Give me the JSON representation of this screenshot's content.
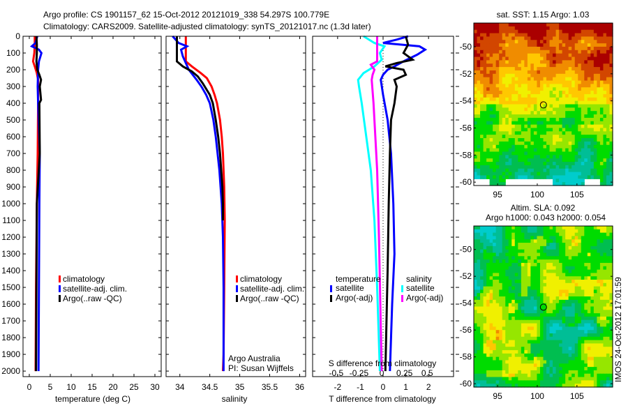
{
  "title_line1": "Argo profile: CS 1901157_62 15-Oct-2012 20121019_338 54.297S 100.779E",
  "title_line2": "Climatology: CARS2009. Satellite-adjusted climatology: synTS_20121017.nc (1.3d later)",
  "colors": {
    "climatology": "#ff0000",
    "satellite": "#0000ff",
    "argo": "#000000",
    "s_satellite": "#00ffff",
    "s_argo": "#ff00ff"
  },
  "footer_stamp": "IMOS 24-Oct-2012 17:01:59",
  "credit_line1": "Argo Australia",
  "credit_line2": "PI: Susan Wijffels",
  "chart_data": [
    {
      "type": "line",
      "name": "temperature",
      "xlabel": "temperature (deg C)",
      "ylabel": "",
      "xlim": [
        -1.5,
        31.5
      ],
      "ylim": [
        2033,
        0
      ],
      "xticks": [
        0,
        5,
        10,
        15,
        20,
        25,
        30
      ],
      "yticks": [
        0,
        100,
        200,
        300,
        400,
        500,
        600,
        700,
        800,
        900,
        1000,
        1100,
        1200,
        1300,
        1400,
        1500,
        1600,
        1700,
        1800,
        1900,
        2000
      ],
      "legend": [
        "climatology",
        "satellite-adj. clim.",
        "Argo(..raw -QC)"
      ],
      "series": [
        {
          "name": "climatology",
          "color": "#ff0000",
          "depth": [
            0,
            50,
            100,
            150,
            180,
            220,
            260,
            400,
            700,
            1000,
            1500,
            2000
          ],
          "values": [
            1.3,
            1.3,
            1.2,
            0.9,
            1.3,
            1.8,
            2.1,
            2.1,
            2.0,
            1.8,
            1.6,
            1.5
          ]
        },
        {
          "name": "satellite-adj. clim.",
          "color": "#0000ff",
          "depth": [
            0,
            40,
            60,
            80,
            100,
            150,
            200,
            300,
            400,
            700,
            1000,
            1500,
            2000
          ],
          "values": [
            1.9,
            1.5,
            0.6,
            2.3,
            2.9,
            2.3,
            2.1,
            2.0,
            2.1,
            2.5,
            2.4,
            2.3,
            2.2
          ]
        },
        {
          "name": "Argo(..raw -QC)",
          "color": "#000000",
          "depth": [
            0,
            50,
            100,
            150,
            200,
            230,
            260,
            300,
            380,
            400,
            700,
            1000,
            1500,
            2000
          ],
          "values": [
            1.7,
            1.8,
            1.8,
            1.7,
            1.9,
            2.4,
            2.8,
            2.5,
            2.8,
            2.4,
            2.5,
            1.8,
            1.7,
            1.6
          ]
        }
      ]
    },
    {
      "type": "line",
      "name": "salinity",
      "xlabel": "salinity",
      "xlim": [
        33.77,
        36.1
      ],
      "ylim": [
        2033,
        0
      ],
      "xticks": [
        34,
        34.5,
        35,
        35.5,
        36
      ],
      "legend": [
        "climatology",
        "satellite-adj. clim.",
        "Argo(..raw -QC)"
      ],
      "series": [
        {
          "name": "climatology",
          "color": "#ff0000",
          "depth": [
            0,
            150,
            180,
            220,
            250,
            300,
            350,
            400,
            500,
            600,
            700,
            900,
            1100,
            1500,
            1900,
            2000
          ],
          "values": [
            34.1,
            34.1,
            34.2,
            34.35,
            34.45,
            34.53,
            34.58,
            34.62,
            34.67,
            34.7,
            34.72,
            34.74,
            34.75,
            34.74,
            34.73,
            34.72
          ]
        },
        {
          "name": "satellite-adj. clim.",
          "color": "#0000ff",
          "depth": [
            0,
            40,
            60,
            80,
            120,
            200,
            260,
            300,
            350,
            400,
            500,
            600,
            800,
            1000,
            1200,
            1500,
            2000
          ],
          "values": [
            33.88,
            33.98,
            34.12,
            34.02,
            34.05,
            34.15,
            34.28,
            34.36,
            34.44,
            34.5,
            34.56,
            34.6,
            34.66,
            34.7,
            34.72,
            34.73,
            34.73
          ]
        },
        {
          "name": "Argo(..raw -QC)",
          "color": "#000000",
          "depth": [
            0,
            150,
            180,
            210,
            240,
            280,
            350,
            400,
            500,
            600,
            700,
            900,
            1000,
            1100
          ],
          "values": [
            33.95,
            33.95,
            34.05,
            34.2,
            34.3,
            34.38,
            34.5,
            34.55,
            34.6,
            34.64,
            34.67,
            34.71,
            34.72,
            34.72
          ]
        }
      ]
    },
    {
      "type": "line",
      "name": "difference",
      "xlabel": "T difference from climatology",
      "x2label": "S difference from climatology",
      "xlim": [
        -3.1,
        3.1
      ],
      "x2lim": [
        -0.76,
        0.79
      ],
      "ylim": [
        2033,
        0
      ],
      "xticks": [
        -2,
        -1,
        0,
        1,
        2
      ],
      "x2ticks": [
        -0.5,
        -0.25,
        0,
        0.25,
        0.5
      ],
      "xtick_labels": [
        "-2",
        "-1",
        "0",
        "1",
        "2"
      ],
      "x2tick_labels": [
        "-0.5",
        "-0.25",
        "0",
        "0.25",
        "0.5"
      ],
      "legend": {
        "temperature_heading": "temperature",
        "salinity_heading": "salinity",
        "temp_items": [
          "satellite",
          "Argo(-adj)"
        ],
        "sal_items": [
          "satellite",
          "Argo(-adj)"
        ]
      },
      "series": [
        {
          "name": "T satellite",
          "axis": "T",
          "color": "#0000ff",
          "depth": [
            0,
            20,
            40,
            60,
            80,
            110,
            150,
            180,
            200,
            230,
            260,
            350,
            500,
            700,
            1000,
            1300,
            1600,
            2000
          ],
          "values": [
            1.1,
            0.6,
            0.0,
            1.6,
            1.85,
            1.5,
            0.9,
            0.5,
            0.2,
            0.0,
            -0.1,
            0.0,
            0.2,
            0.35,
            0.45,
            0.5,
            0.4,
            0.3
          ]
        },
        {
          "name": "T Argo(-adj)",
          "axis": "T",
          "color": "#000000",
          "depth": [
            0,
            50,
            100,
            140,
            160,
            180,
            200,
            230,
            260,
            300,
            400,
            500,
            700,
            1000,
            1400,
            2000
          ],
          "values": [
            1.0,
            1.1,
            0.9,
            1.3,
            0.6,
            0.1,
            0.9,
            1.0,
            0.5,
            0.6,
            0.5,
            0.35,
            0.3,
            0.25,
            0.2,
            0.1
          ]
        },
        {
          "name": "S satellite",
          "axis": "S",
          "color": "#00ffff",
          "depth": [
            0,
            40,
            60,
            100,
            140,
            180,
            220,
            260,
            300,
            400,
            600,
            800,
            1100,
            1500,
            2000
          ],
          "values": [
            -0.2,
            -0.08,
            0.03,
            -0.02,
            0.0,
            -0.08,
            -0.2,
            -0.26,
            -0.25,
            -0.22,
            -0.17,
            -0.12,
            -0.08,
            -0.05,
            -0.02
          ]
        },
        {
          "name": "S Argo(-adj)",
          "axis": "S",
          "color": "#ff00ff",
          "depth": [
            0,
            100,
            150,
            170,
            200,
            230,
            260,
            400,
            600,
            800,
            1200,
            2000
          ],
          "values": [
            -0.05,
            -0.05,
            -0.05,
            -0.12,
            -0.08,
            -0.1,
            -0.11,
            -0.09,
            -0.07,
            -0.05,
            -0.03,
            0.0
          ]
        }
      ]
    },
    {
      "type": "heatmap",
      "name": "sst_map",
      "title": "sat. SST: 1.15 Argo: 1.03",
      "xlim": [
        92.0,
        109.5
      ],
      "ylim": [
        -60.25,
        -48.25
      ],
      "xticks": [
        95,
        100,
        105
      ],
      "yticks": [
        -50,
        -52,
        -54,
        -56,
        -58,
        -60
      ],
      "marker": {
        "lon": 100.779,
        "lat": -54.297
      }
    },
    {
      "type": "heatmap",
      "name": "sla_map",
      "title_line1": "Altim. SLA: 0.092",
      "title_line2": "Argo h1000: 0.043 h2000: 0.054",
      "xlim": [
        92.0,
        109.5
      ],
      "ylim": [
        -60.25,
        -48.25
      ],
      "xticks": [
        95,
        100,
        105
      ],
      "yticks": [
        -50,
        -52,
        -54,
        -56,
        -58,
        -60
      ],
      "marker": {
        "lon": 100.779,
        "lat": -54.297
      }
    }
  ]
}
